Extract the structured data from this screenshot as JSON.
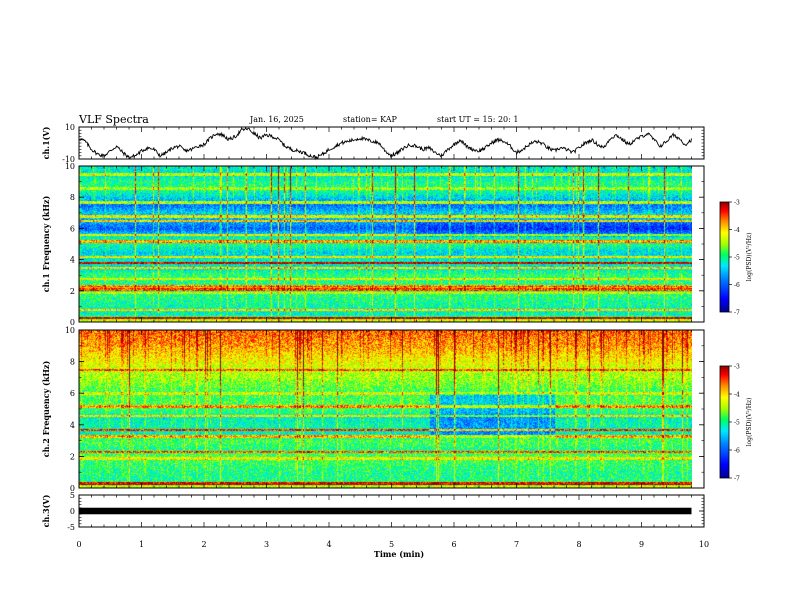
{
  "header": {
    "title": "VLF Spectra",
    "date": "Jan. 16, 2025",
    "station": "station= KAP",
    "start": "start UT =  15: 20: 1"
  },
  "colors": {
    "ink": "#000000",
    "spectrogram_stops": [
      "#000090",
      "#0000ff",
      "#0080ff",
      "#00e8ff",
      "#00ff60",
      "#a8ff00",
      "#ffff00",
      "#ff9000",
      "#ff0000",
      "#8c0000"
    ]
  },
  "chart_data": [
    {
      "id": "ch1-waveform",
      "type": "line",
      "ylabel": "ch.1(V)",
      "ylim": [
        -10,
        10
      ],
      "yticks": [
        "10",
        "-10"
      ],
      "xlim": [
        0,
        10
      ],
      "trace_end_min": 9.8,
      "series": [
        {
          "name": "ch.1",
          "x": [
            0.0,
            0.1,
            0.2,
            0.3,
            0.4,
            0.5,
            0.6,
            0.7,
            0.8,
            0.9,
            1.0,
            1.1,
            1.2,
            1.3,
            1.4,
            1.5,
            1.6,
            1.7,
            1.8,
            1.9,
            2.0,
            2.1,
            2.2,
            2.3,
            2.4,
            2.5,
            2.6,
            2.7,
            2.8,
            2.9,
            3.0,
            3.1,
            3.2,
            3.3,
            3.4,
            3.5,
            3.6,
            3.7,
            3.8,
            3.9,
            4.0,
            4.1,
            4.2,
            4.3,
            4.4,
            4.5,
            4.6,
            4.7,
            4.8,
            4.9,
            5.0,
            5.1,
            5.2,
            5.3,
            5.4,
            5.5,
            5.6,
            5.7,
            5.8,
            5.9,
            6.0,
            6.1,
            6.2,
            6.3,
            6.4,
            6.5,
            6.6,
            6.7,
            6.8,
            6.9,
            7.0,
            7.1,
            7.2,
            7.3,
            7.4,
            7.5,
            7.6,
            7.7,
            7.8,
            7.9,
            8.0,
            8.1,
            8.2,
            8.3,
            8.4,
            8.5,
            8.6,
            8.7,
            8.8,
            8.9,
            9.0,
            9.1,
            9.2,
            9.3,
            9.4,
            9.5,
            9.6,
            9.7,
            9.8
          ],
          "values": [
            3,
            1,
            -4,
            -7,
            -8,
            -5,
            -2,
            -6,
            -9,
            -8,
            -5,
            -3,
            -4,
            -8,
            -6,
            -3,
            -2,
            -5,
            -4,
            -2,
            -1,
            3,
            6,
            5,
            2,
            4,
            8,
            9,
            6,
            3,
            5,
            4,
            2,
            -2,
            -4,
            -5,
            -6,
            -8,
            -9,
            -7,
            -4,
            -2,
            0,
            1,
            2,
            3,
            2,
            1,
            0,
            -5,
            -8,
            -6,
            -3,
            -1,
            -2,
            -4,
            -3,
            -6,
            -8,
            -4,
            -1,
            2,
            -2,
            -4,
            -5,
            -3,
            0,
            2,
            1,
            -2,
            -6,
            -4,
            -1,
            1,
            0,
            -3,
            -5,
            -3,
            -4,
            -6,
            -3,
            0,
            2,
            -1,
            -3,
            3,
            5,
            2,
            -1,
            2,
            4,
            6,
            2,
            -2,
            1,
            5,
            3,
            -1,
            2
          ]
        }
      ]
    },
    {
      "id": "ch1-spectrogram",
      "type": "heatmap",
      "ylabel": "ch.1 Frequency (kHz)",
      "ylim": [
        0,
        10
      ],
      "yticks": [
        "0",
        "2",
        "4",
        "6",
        "8",
        "10"
      ],
      "xlim": [
        0,
        10
      ],
      "trace_end_min": 9.8,
      "colorbar": {
        "label": "log(PSD)(V²/Hz)",
        "range": [
          -7,
          -3
        ],
        "ticks": [
          "-3",
          "-4",
          "-5",
          "-6",
          "-7"
        ]
      },
      "profile": {
        "freq_khz": [
          0,
          0.5,
          1,
          1.5,
          2,
          2.5,
          3,
          3.5,
          4,
          4.5,
          5,
          5.5,
          6,
          6.5,
          7,
          7.5,
          8,
          8.5,
          9,
          9.5,
          10
        ],
        "log_psd": [
          -4.0,
          -5.2,
          -5.1,
          -5.0,
          -4.9,
          -5.0,
          -4.9,
          -5.3,
          -5.2,
          -5.4,
          -5.0,
          -5.2,
          -6.0,
          -5.6,
          -5.4,
          -5.9,
          -5.4,
          -5.0,
          -5.0,
          -5.3,
          -5.2
        ]
      },
      "lines": [
        {
          "freq_khz": 0.3,
          "log_psd": -3.2
        },
        {
          "freq_khz": 0.8,
          "log_psd": -4.0
        },
        {
          "freq_khz": 1.9,
          "log_psd": -4.3
        },
        {
          "freq_khz": 2.1,
          "log_psd": -3.5
        },
        {
          "freq_khz": 2.3,
          "log_psd": -3.7
        },
        {
          "freq_khz": 2.8,
          "log_psd": -4.2
        },
        {
          "freq_khz": 3.5,
          "log_psd": -4.0
        },
        {
          "freq_khz": 3.8,
          "log_psd": -3.3
        },
        {
          "freq_khz": 4.2,
          "log_psd": -4.3
        },
        {
          "freq_khz": 5.2,
          "log_psd": -3.8
        },
        {
          "freq_khz": 5.6,
          "log_psd": -4.1
        },
        {
          "freq_khz": 6.5,
          "log_psd": -3.9
        },
        {
          "freq_khz": 6.8,
          "log_psd": -4.2
        },
        {
          "freq_khz": 7.7,
          "log_psd": -4.4
        },
        {
          "freq_khz": 8.6,
          "log_psd": -4.5
        },
        {
          "freq_khz": 9.5,
          "log_psd": -4.3
        }
      ]
    },
    {
      "id": "ch2-spectrogram",
      "type": "heatmap",
      "ylabel": "ch.2 Frequency (kHz)",
      "ylim": [
        0,
        10
      ],
      "yticks": [
        "0",
        "2",
        "4",
        "6",
        "8",
        "10"
      ],
      "xlim": [
        0,
        10
      ],
      "trace_end_min": 9.8,
      "colorbar": {
        "label": "log(PSD)(V²/Hz)",
        "range": [
          -7,
          -3
        ],
        "ticks": [
          "-3",
          "-4",
          "-5",
          "-6",
          "-7"
        ]
      },
      "profile": {
        "freq_khz": [
          0,
          0.5,
          1,
          1.5,
          2,
          2.5,
          3,
          3.5,
          4,
          4.5,
          5,
          5.5,
          6,
          6.5,
          7,
          7.5,
          8,
          8.5,
          9,
          9.5,
          10
        ],
        "log_psd": [
          -4.2,
          -5.0,
          -5.0,
          -4.9,
          -4.8,
          -5.0,
          -4.8,
          -5.2,
          -5.1,
          -5.2,
          -4.9,
          -4.8,
          -4.9,
          -4.7,
          -4.5,
          -4.4,
          -4.2,
          -4.0,
          -3.8,
          -3.7,
          -3.6
        ]
      },
      "lines": [
        {
          "freq_khz": 0.3,
          "log_psd": -3.2
        },
        {
          "freq_khz": 1.9,
          "log_psd": -4.2
        },
        {
          "freq_khz": 2.3,
          "log_psd": -3.6
        },
        {
          "freq_khz": 3.3,
          "log_psd": -3.9
        },
        {
          "freq_khz": 3.7,
          "log_psd": -3.6
        },
        {
          "freq_khz": 4.6,
          "log_psd": -4.1
        },
        {
          "freq_khz": 5.2,
          "log_psd": -3.8
        },
        {
          "freq_khz": 6.0,
          "log_psd": -4.3
        },
        {
          "freq_khz": 7.5,
          "log_psd": -3.7
        }
      ]
    },
    {
      "id": "ch3-waveform",
      "type": "line",
      "ylabel": "ch.3(V)",
      "ylim": [
        -5,
        5
      ],
      "yticks": [
        "5",
        "0",
        "-5"
      ],
      "xlim": [
        0,
        10
      ],
      "trace_end_min": 9.8,
      "series": [
        {
          "name": "ch.3",
          "x": [
            0,
            9.8
          ],
          "values": [
            0,
            0
          ],
          "band_half_width": 0.4
        }
      ]
    }
  ],
  "x_axis": {
    "label": "Time (min)",
    "ticks": [
      "0",
      "1",
      "2",
      "3",
      "4",
      "5",
      "6",
      "7",
      "8",
      "9",
      "10"
    ]
  }
}
